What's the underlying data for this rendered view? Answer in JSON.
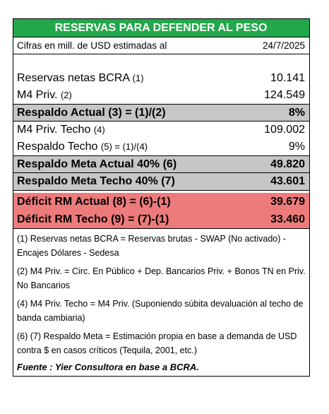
{
  "title": "RESERVAS PARA DEFENDER AL PESO",
  "subtitle": {
    "label": "Cifras en mill. de USD estimadas al",
    "date": "24/7/2025"
  },
  "rows": [
    {
      "label": "Reservas netas BCRA",
      "ref": "(1)",
      "value": "10.141"
    },
    {
      "label": "M4 Priv.",
      "ref": "(2)",
      "value": "124.549"
    },
    {
      "label": "Respaldo Actual",
      "ref": "(3) = (1)/(2)",
      "value": "8%"
    },
    {
      "label": "M4 Priv. Techo",
      "ref": "(4)",
      "value": "109.002"
    },
    {
      "label": "Respaldo Techo",
      "ref": "(5) = (1)/(4)",
      "value": "9%"
    },
    {
      "label": "Respaldo Meta Actual 40%",
      "ref": "(6)",
      "value": "49.820"
    },
    {
      "label": "Respaldo Meta Techo 40%",
      "ref": "(7)",
      "value": "43.601"
    },
    {
      "label": "Déficit RM Actual",
      "ref": "(8) = (6)-(1)",
      "value": "39.679"
    },
    {
      "label": "Déficit RM Techo",
      "ref": "(9) = (7)-(1)",
      "value": "33.460"
    }
  ],
  "notes": [
    "(1) Reservas netas BCRA = Reservas brutas - SWAP (No activado) - Encajes Dólares - Sedesa",
    "(2) M4 Priv. = Circ. En Público + Dep. Bancarios Priv. + Bonos TN en Priv. No Bancarios",
    "(4) M4 Priv. Techo = M4 Priv.  (Suponiendo súbita devaluación al techo de banda cambiaria)",
    "(6) (7) Respaldo Meta = Estimación propia en base a demanda de USD contra $ en casos críticos (Tequila, 2001, etc.)"
  ],
  "source": "Fuente : Yier Consultora en base a BCRA.",
  "colors": {
    "title_bg": "#22a84b",
    "gray_bg": "#c6c6c6",
    "red_bg": "#ee7b7b"
  }
}
